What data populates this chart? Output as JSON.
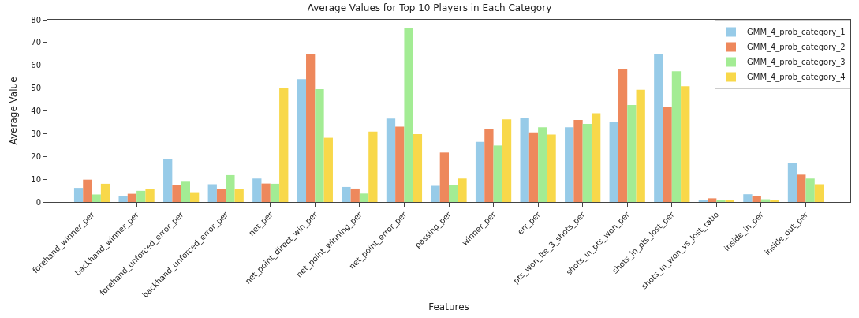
{
  "chart_data": {
    "type": "bar",
    "title": "Average Values for Top 10 Players in Each Category",
    "xlabel": "Features",
    "ylabel": "Average Value",
    "categories": [
      "forehand_winner_per",
      "backhand_winner_per",
      "forehand_unforced_error_per",
      "backhand_unforced_error_per",
      "net_per",
      "net_point_direct_win_per",
      "net_point_winning_per",
      "net_point_error_per",
      "passing_per",
      "winner_per",
      "err_per",
      "pts_won_lte_3_shots_per",
      "shots_in_pts_won_per",
      "shots_in_pts_lost_per",
      "shots_in_won_vs_lost_ratio",
      "inside_in_per",
      "inside_out_per"
    ],
    "series": [
      {
        "name": "GMM_4_prob_category_1",
        "color": "#97cbe8",
        "values": [
          6.2,
          2.7,
          18.9,
          7.8,
          10.3,
          53.9,
          6.6,
          36.6,
          7.1,
          26.4,
          36.9,
          32.8,
          35.2,
          65.0,
          0.6,
          3.4,
          17.3
        ]
      },
      {
        "name": "GMM_4_prob_category_2",
        "color": "#ee885c",
        "values": [
          9.8,
          3.6,
          7.4,
          5.6,
          8.1,
          64.8,
          5.9,
          33.1,
          21.7,
          32.0,
          30.6,
          36.0,
          58.3,
          41.8,
          1.6,
          2.7,
          12.0
        ]
      },
      {
        "name": "GMM_4_prob_category_3",
        "color": "#a3ec94",
        "values": [
          3.3,
          4.9,
          8.9,
          11.8,
          8.0,
          49.5,
          3.7,
          76.3,
          7.5,
          24.8,
          32.8,
          34.3,
          42.6,
          57.4,
          1.0,
          1.2,
          10.3
        ]
      },
      {
        "name": "GMM_4_prob_category_4",
        "color": "#f8d84a",
        "values": [
          8.0,
          5.8,
          4.3,
          5.6,
          50.0,
          28.2,
          30.9,
          29.8,
          10.3,
          36.3,
          29.6,
          39.0,
          49.3,
          50.8,
          1.0,
          0.8,
          7.8
        ]
      }
    ],
    "ylim": [
      0,
      80
    ],
    "yticks": [
      0,
      10,
      20,
      30,
      40,
      50,
      60,
      70,
      80
    ],
    "legend": "top right"
  }
}
